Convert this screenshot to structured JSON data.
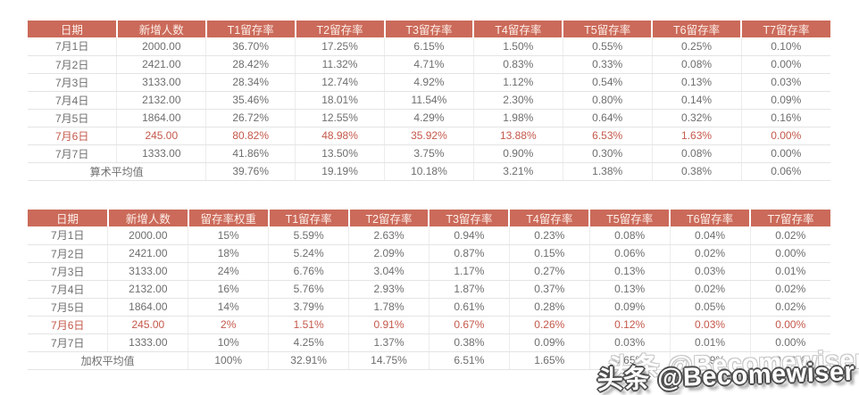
{
  "colors": {
    "header_bg": "#cb6a5a",
    "header_text": "#fdefe9",
    "cell_text": "#6e6e6e",
    "highlight_text": "#c4584a",
    "row_border": "#e4e4e4"
  },
  "watermark": {
    "text": "头条 @Becomewiser"
  },
  "chart_data": [
    {
      "type": "table",
      "columns": [
        "日期",
        "新增人数",
        "T1留存率",
        "T2留存率",
        "T3留存率",
        "T4留存率",
        "T5留存率",
        "T6留存率",
        "T7留存率"
      ],
      "rows": [
        {
          "highlight": false,
          "cells": [
            "7月1日",
            "2000.00",
            "36.70%",
            "17.25%",
            "6.15%",
            "1.50%",
            "0.55%",
            "0.25%",
            "0.10%"
          ]
        },
        {
          "highlight": false,
          "cells": [
            "7月2日",
            "2421.00",
            "28.42%",
            "11.32%",
            "4.71%",
            "0.83%",
            "0.33%",
            "0.08%",
            "0.00%"
          ]
        },
        {
          "highlight": false,
          "cells": [
            "7月3日",
            "3133.00",
            "28.34%",
            "12.74%",
            "4.92%",
            "1.12%",
            "0.54%",
            "0.13%",
            "0.03%"
          ]
        },
        {
          "highlight": false,
          "cells": [
            "7月4日",
            "2132.00",
            "35.46%",
            "18.01%",
            "11.54%",
            "2.30%",
            "0.80%",
            "0.14%",
            "0.09%"
          ]
        },
        {
          "highlight": false,
          "cells": [
            "7月5日",
            "1864.00",
            "26.72%",
            "12.55%",
            "4.29%",
            "1.98%",
            "0.64%",
            "0.32%",
            "0.16%"
          ]
        },
        {
          "highlight": true,
          "cells": [
            "7月6日",
            "245.00",
            "80.82%",
            "48.98%",
            "35.92%",
            "13.88%",
            "6.53%",
            "1.63%",
            "0.00%"
          ]
        },
        {
          "highlight": false,
          "cells": [
            "7月7日",
            "1333.00",
            "41.86%",
            "13.50%",
            "3.75%",
            "0.90%",
            "0.30%",
            "0.08%",
            "0.00%"
          ]
        }
      ],
      "summary": {
        "label": "算术平均值",
        "label_span": 2,
        "cells": [
          "39.76%",
          "19.19%",
          "10.18%",
          "3.21%",
          "1.38%",
          "0.38%",
          "0.06%"
        ]
      }
    },
    {
      "type": "table",
      "columns": [
        "日期",
        "新增人数",
        "留存率权重",
        "T1留存率",
        "T2留存率",
        "T3留存率",
        "T4留存率",
        "T5留存率",
        "T6留存率",
        "T7留存率"
      ],
      "rows": [
        {
          "highlight": false,
          "cells": [
            "7月1日",
            "2000.00",
            "15%",
            "5.59%",
            "2.63%",
            "0.94%",
            "0.23%",
            "0.08%",
            "0.04%",
            "0.02%"
          ]
        },
        {
          "highlight": false,
          "cells": [
            "7月2日",
            "2421.00",
            "18%",
            "5.24%",
            "2.09%",
            "0.87%",
            "0.15%",
            "0.06%",
            "0.02%",
            "0.00%"
          ]
        },
        {
          "highlight": false,
          "cells": [
            "7月3日",
            "3133.00",
            "24%",
            "6.76%",
            "3.04%",
            "1.17%",
            "0.27%",
            "0.13%",
            "0.03%",
            "0.01%"
          ]
        },
        {
          "highlight": false,
          "cells": [
            "7月4日",
            "2132.00",
            "16%",
            "5.76%",
            "2.93%",
            "1.87%",
            "0.37%",
            "0.13%",
            "0.02%",
            "0.02%"
          ]
        },
        {
          "highlight": false,
          "cells": [
            "7月5日",
            "1864.00",
            "14%",
            "3.79%",
            "1.78%",
            "0.61%",
            "0.28%",
            "0.09%",
            "0.05%",
            "0.02%"
          ]
        },
        {
          "highlight": true,
          "cells": [
            "7月6日",
            "245.00",
            "2%",
            "1.51%",
            "0.91%",
            "0.67%",
            "0.26%",
            "0.12%",
            "0.03%",
            "0.00%"
          ]
        },
        {
          "highlight": false,
          "cells": [
            "7月7日",
            "1333.00",
            "10%",
            "4.25%",
            "1.37%",
            "0.38%",
            "0.09%",
            "0.03%",
            "0.01%",
            "0.00%"
          ]
        }
      ],
      "summary": {
        "label": "加权平均值",
        "label_span": 2,
        "cells": [
          "100%",
          "32.91%",
          "14.75%",
          "6.51%",
          "1.65%",
          "0.65%",
          "0.19%",
          "0.06%"
        ]
      }
    }
  ]
}
